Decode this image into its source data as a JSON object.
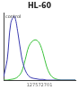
{
  "chart_data": {
    "type": "line",
    "title": "HL-60",
    "subtitle": "127572701",
    "x": [
      0,
      5,
      10,
      15,
      20,
      25,
      30,
      35,
      40,
      45,
      50,
      55,
      60,
      65,
      70,
      75,
      80,
      85,
      90,
      95,
      100
    ],
    "series": [
      {
        "name": "control",
        "color": "#3b3bb0",
        "values": [
          5,
          30,
          85,
          95,
          70,
          35,
          15,
          6,
          3,
          2,
          1,
          1,
          0,
          0,
          0,
          0,
          0,
          0,
          0,
          0,
          0
        ]
      },
      {
        "color": "#3cc23c",
        "values": [
          0,
          0,
          1,
          2,
          5,
          12,
          30,
          50,
          58,
          60,
          55,
          40,
          20,
          8,
          3,
          1,
          0,
          0,
          0,
          0,
          0
        ]
      }
    ],
    "xlim": [
      0,
      100
    ],
    "ylim": [
      0,
      100
    ],
    "grid": false,
    "tick_labels": false
  }
}
